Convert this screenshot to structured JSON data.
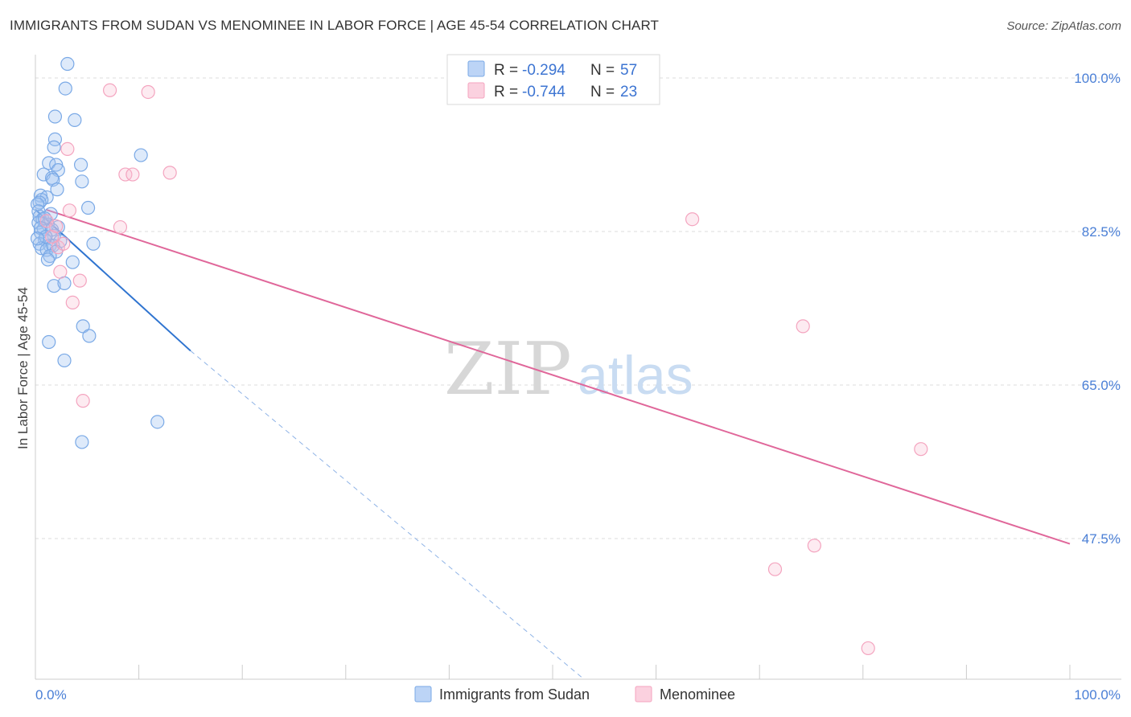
{
  "title": "IMMIGRANTS FROM SUDAN VS MENOMINEE IN LABOR FORCE | AGE 45-54 CORRELATION CHART",
  "source": "Source: ZipAtlas.com",
  "watermark": {
    "zip": "ZIP",
    "atlas": "atlas"
  },
  "chart_data": {
    "type": "scatter",
    "ylabel": "In Labor Force | Age 45-54",
    "x_tick_labels": [
      "0.0%",
      "100.0%"
    ],
    "y_tick_labels": [
      "100.0%",
      "82.5%",
      "65.0%",
      "47.5%"
    ],
    "y_ticks": [
      100.0,
      82.5,
      65.0,
      47.5
    ],
    "xlim": [
      0,
      100
    ],
    "ylim": [
      31.5,
      102
    ],
    "grid": true,
    "legend_position": "top-center",
    "series": [
      {
        "name": "Immigrants from Sudan",
        "color": "#7aa9e6",
        "line_color": "#2f74d0",
        "R": "-0.294",
        "N": "57",
        "trend": {
          "x0": 0.0,
          "y0": 85.0,
          "x1": 15.0,
          "y1": 68.9,
          "dash_x1": 53.0,
          "dash_y1": 31.5
        },
        "points": [
          [
            3.1,
            101.6
          ],
          [
            2.9,
            98.8
          ],
          [
            1.9,
            95.6
          ],
          [
            3.8,
            95.2
          ],
          [
            1.9,
            93.0
          ],
          [
            1.8,
            92.1
          ],
          [
            10.2,
            91.2
          ],
          [
            1.3,
            90.3
          ],
          [
            4.4,
            90.1
          ],
          [
            2.0,
            90.1
          ],
          [
            2.2,
            89.5
          ],
          [
            0.8,
            89.0
          ],
          [
            1.6,
            88.6
          ],
          [
            4.5,
            88.2
          ],
          [
            1.7,
            88.4
          ],
          [
            2.1,
            87.3
          ],
          [
            0.5,
            86.6
          ],
          [
            1.1,
            86.4
          ],
          [
            0.6,
            86.1
          ],
          [
            0.4,
            85.8
          ],
          [
            0.2,
            85.6
          ],
          [
            0.3,
            84.8
          ],
          [
            0.4,
            84.2
          ],
          [
            0.7,
            83.9
          ],
          [
            1.5,
            84.5
          ],
          [
            5.1,
            85.2
          ],
          [
            0.3,
            83.5
          ],
          [
            1.2,
            83.3
          ],
          [
            0.8,
            82.8
          ],
          [
            2.2,
            83.0
          ],
          [
            0.5,
            82.4
          ],
          [
            1.8,
            82.0
          ],
          [
            0.9,
            81.6
          ],
          [
            0.4,
            81.1
          ],
          [
            2.4,
            81.4
          ],
          [
            1.4,
            80.9
          ],
          [
            0.6,
            80.6
          ],
          [
            1.1,
            80.4
          ],
          [
            5.6,
            81.1
          ],
          [
            1.7,
            80.9
          ],
          [
            2.0,
            80.2
          ],
          [
            1.4,
            79.7
          ],
          [
            1.2,
            79.3
          ],
          [
            3.6,
            79.0
          ],
          [
            1.8,
            76.3
          ],
          [
            2.8,
            76.6
          ],
          [
            4.6,
            71.7
          ],
          [
            5.2,
            70.6
          ],
          [
            1.3,
            69.9
          ],
          [
            2.8,
            67.8
          ],
          [
            11.8,
            60.8
          ],
          [
            4.5,
            58.5
          ],
          [
            0.9,
            84.0
          ],
          [
            0.5,
            82.9
          ],
          [
            1.6,
            82.7
          ],
          [
            1.0,
            81.9
          ],
          [
            0.2,
            81.7
          ]
        ]
      },
      {
        "name": "Menominee",
        "color": "#f4a4bf",
        "line_color": "#e0679a",
        "R": "-0.744",
        "N": "23",
        "trend": {
          "x0": 1.0,
          "y0": 85.0,
          "x1": 100.0,
          "y1": 46.9
        },
        "points": [
          [
            7.2,
            98.6
          ],
          [
            10.9,
            98.4
          ],
          [
            3.1,
            91.9
          ],
          [
            8.7,
            89.0
          ],
          [
            9.4,
            89.0
          ],
          [
            13.0,
            89.2
          ],
          [
            3.3,
            84.9
          ],
          [
            8.2,
            83.0
          ],
          [
            63.5,
            83.9
          ],
          [
            1.1,
            83.7
          ],
          [
            2.2,
            80.7
          ],
          [
            2.4,
            77.9
          ],
          [
            4.3,
            76.9
          ],
          [
            3.6,
            74.4
          ],
          [
            74.2,
            71.7
          ],
          [
            4.6,
            63.2
          ],
          [
            85.6,
            57.7
          ],
          [
            75.3,
            46.7
          ],
          [
            71.5,
            44.0
          ],
          [
            80.5,
            35.0
          ],
          [
            1.6,
            81.9
          ],
          [
            2.7,
            81.1
          ],
          [
            2.0,
            83.1
          ]
        ]
      }
    ]
  }
}
